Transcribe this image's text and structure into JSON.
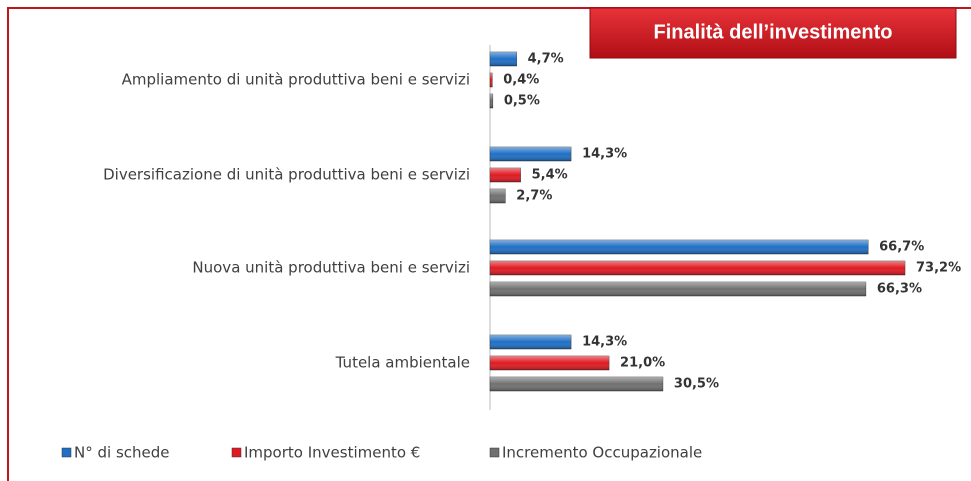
{
  "chart_data": {
    "type": "bar",
    "orientation": "horizontal",
    "title": "Finalità dell’investimento",
    "categories": [
      "Ampliamento di unità produttiva beni e servizi",
      "Diversificazione di unità produttiva beni e servizi",
      "Nuova unità produttiva beni e servizi",
      "Tutela ambientale"
    ],
    "series": [
      {
        "name": "N° di schede",
        "color": "#1f6fc5",
        "values": [
          4.7,
          14.3,
          66.7,
          14.3
        ],
        "value_labels": [
          "4,7%",
          "14,3%",
          "66,7%",
          "14,3%"
        ]
      },
      {
        "name": "Importo Investimento €",
        "color": "#e01a22",
        "values": [
          0.4,
          5.4,
          73.2,
          21.0
        ],
        "value_labels": [
          "0,4%",
          "5,4%",
          "73,2%",
          "21,0%"
        ]
      },
      {
        "name": "Incremento Occupazionale",
        "color": "#707070",
        "values": [
          0.5,
          2.7,
          66.3,
          30.5
        ],
        "value_labels": [
          "0,5%",
          "2,7%",
          "66,3%",
          "30,5%"
        ]
      }
    ],
    "legend": "bottom"
  }
}
